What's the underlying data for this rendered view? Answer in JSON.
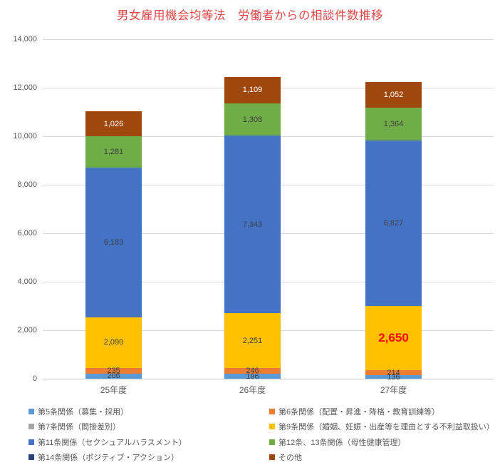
{
  "chart_data": {
    "type": "bar",
    "subtype": "stacked-vertical",
    "title": "男女雇用機会均等法　労働者からの相談件数推移",
    "title_color": "#E04848",
    "categories": [
      "25年度",
      "26年度",
      "27年度"
    ],
    "series": [
      {
        "name": "第5条関係（募集・採用）",
        "color": "#5B9BD5",
        "values": [
          206,
          196,
          136
        ]
      },
      {
        "name": "第6条関係（配置・昇進・降格・教育訓練等）",
        "color": "#ED7D31",
        "values": [
          235,
          246,
          214
        ]
      },
      {
        "name": "第7条関係（間接差別）",
        "color": "#A5A5A5",
        "values": [
          0,
          0,
          0
        ]
      },
      {
        "name": "第9条関係（婚姻、妊娠・出産等を理由とする不利益取扱い）",
        "color": "#FFC000",
        "values": [
          2090,
          2251,
          2650
        ]
      },
      {
        "name": "第11条関係（セクシュアルハラスメント）",
        "color": "#4472C4",
        "values": [
          6183,
          7343,
          6827
        ]
      },
      {
        "name": "第12条、13条関係（母性健康管理）",
        "color": "#70AD47",
        "values": [
          1281,
          1308,
          1364
        ]
      },
      {
        "name": "第14条関係（ポジティブ・アクション）",
        "color": "#264478",
        "values": [
          0,
          0,
          0
        ]
      },
      {
        "name": "その他",
        "color": "#9E480E",
        "values": [
          1026,
          1109,
          1052
        ],
        "label_color": "#FFFFFF"
      }
    ],
    "ylim": [
      0,
      14000
    ],
    "ytick_step": 2000,
    "yticklabels": [
      "0",
      "2,000",
      "4,000",
      "6,000",
      "8,000",
      "10,000",
      "12,000",
      "14,000"
    ],
    "grid": true,
    "grid_color": "#D9D9D9",
    "axis_text_color": "#595959",
    "data_label_color": "#404040",
    "legend_position": "bottom-two-columns",
    "highlight": {
      "category_index": 2,
      "series_index": 3,
      "value_label": "2,650",
      "color": "#FF0000",
      "bold": true,
      "font_size": 17
    }
  }
}
